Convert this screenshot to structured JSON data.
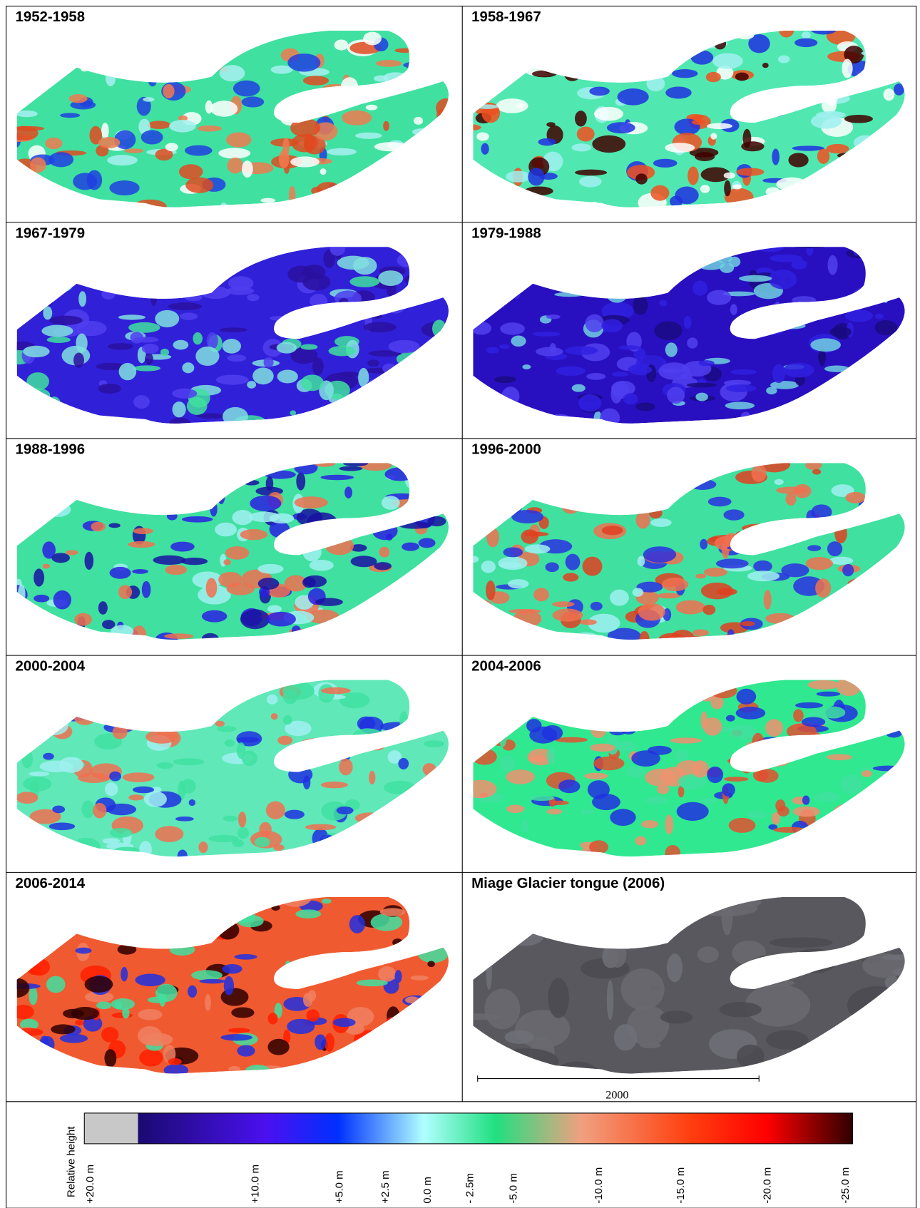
{
  "panels": [
    {
      "title": "1952-1958"
    },
    {
      "title": "1958-1967"
    },
    {
      "title": "1967-1979"
    },
    {
      "title": "1979-1988"
    },
    {
      "title": "1988-1996"
    },
    {
      "title": "1996-2000"
    },
    {
      "title": "2000-2004"
    },
    {
      "title": "2004-2006"
    },
    {
      "title": "2006-2014"
    },
    {
      "title": "Miage Glacier tongue (2006)"
    }
  ],
  "scale_bar": {
    "label": "2000"
  },
  "colorbar": {
    "label": "Relative height",
    "ticks": [
      "+20.0 m",
      "+10.0 m",
      "+5.0 m",
      "+2.5 m",
      "0.0 m",
      "- 2.5m",
      "-5.0 m",
      "-10.0 m",
      "-15.0 m",
      "-20.0 m",
      "-25.0 m"
    ]
  }
}
